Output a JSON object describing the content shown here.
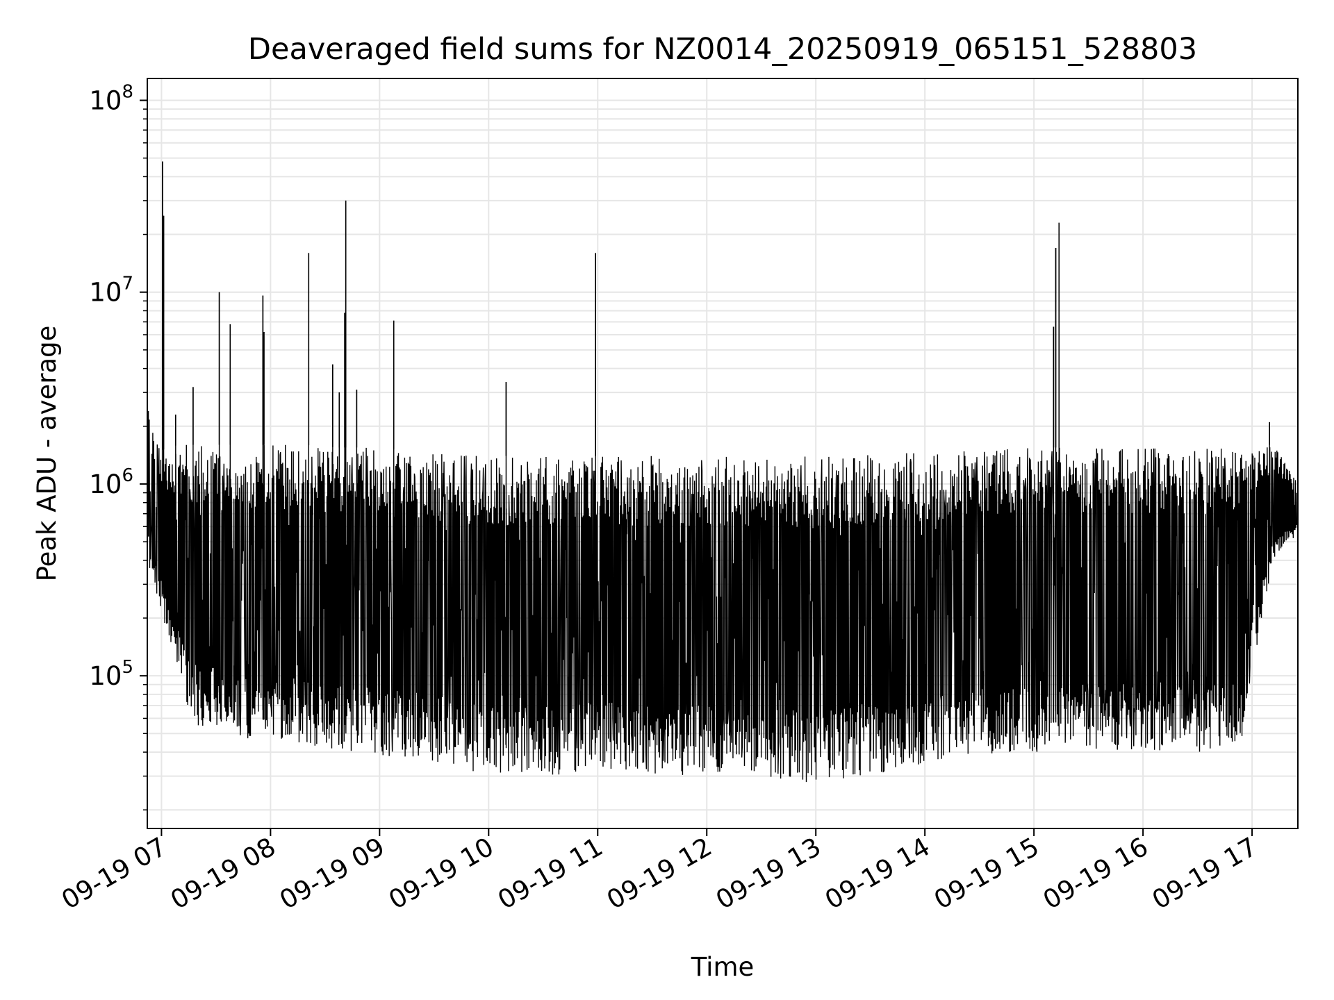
{
  "chart_data": {
    "type": "line",
    "title": "Deaveraged field sums for NZ0014_20250919_065151_528803",
    "xlabel": "Time",
    "ylabel": "Peak ADU - average",
    "yscale": "log",
    "ylim": [
      16000,
      130000000
    ],
    "xlim_hours": [
      6.87,
      17.42
    ],
    "grid": true,
    "line_color": "#000000",
    "grid_color": "#e6e6e6",
    "x_ticks": [
      {
        "hour": 7,
        "label": "09-19 07"
      },
      {
        "hour": 8,
        "label": "09-19 08"
      },
      {
        "hour": 9,
        "label": "09-19 09"
      },
      {
        "hour": 10,
        "label": "09-19 10"
      },
      {
        "hour": 11,
        "label": "09-19 11"
      },
      {
        "hour": 12,
        "label": "09-19 12"
      },
      {
        "hour": 13,
        "label": "09-19 13"
      },
      {
        "hour": 14,
        "label": "09-19 14"
      },
      {
        "hour": 15,
        "label": "09-19 15"
      },
      {
        "hour": 16,
        "label": "09-19 16"
      },
      {
        "hour": 17,
        "label": "09-19 17"
      }
    ],
    "y_ticks": [
      {
        "value": 100000,
        "base": "10",
        "exp": "5"
      },
      {
        "value": 1000000,
        "base": "10",
        "exp": "6"
      },
      {
        "value": 10000000,
        "base": "10",
        "exp": "7"
      },
      {
        "value": 100000000,
        "base": "10",
        "exp": "8"
      }
    ],
    "envelope": [
      {
        "t": 6.88,
        "hi": 2400000,
        "lo": 380000
      },
      {
        "t": 7.0,
        "hi": 1500000,
        "lo": 200000
      },
      {
        "t": 7.15,
        "hi": 1600000,
        "lo": 95000
      },
      {
        "t": 7.3,
        "hi": 1600000,
        "lo": 55000
      },
      {
        "t": 7.6,
        "hi": 1600000,
        "lo": 50000
      },
      {
        "t": 7.9,
        "hi": 1600000,
        "lo": 42000
      },
      {
        "t": 8.3,
        "hi": 1600000,
        "lo": 45000
      },
      {
        "t": 8.6,
        "hi": 1550000,
        "lo": 40000
      },
      {
        "t": 9.0,
        "hi": 1550000,
        "lo": 38000
      },
      {
        "t": 9.5,
        "hi": 1450000,
        "lo": 36000
      },
      {
        "t": 10.0,
        "hi": 1400000,
        "lo": 30000
      },
      {
        "t": 10.5,
        "hi": 1400000,
        "lo": 30000
      },
      {
        "t": 11.0,
        "hi": 1400000,
        "lo": 32000
      },
      {
        "t": 11.5,
        "hi": 1400000,
        "lo": 30000
      },
      {
        "t": 12.0,
        "hi": 1400000,
        "lo": 30000
      },
      {
        "t": 12.5,
        "hi": 1400000,
        "lo": 30000
      },
      {
        "t": 13.0,
        "hi": 1400000,
        "lo": 27000
      },
      {
        "t": 13.5,
        "hi": 1450000,
        "lo": 30000
      },
      {
        "t": 14.0,
        "hi": 1450000,
        "lo": 35000
      },
      {
        "t": 14.5,
        "hi": 1500000,
        "lo": 38000
      },
      {
        "t": 15.0,
        "hi": 1550000,
        "lo": 40000
      },
      {
        "t": 15.5,
        "hi": 1550000,
        "lo": 42000
      },
      {
        "t": 16.0,
        "hi": 1550000,
        "lo": 40000
      },
      {
        "t": 16.5,
        "hi": 1550000,
        "lo": 38000
      },
      {
        "t": 16.9,
        "hi": 1550000,
        "lo": 45000
      },
      {
        "t": 17.05,
        "hi": 1600000,
        "lo": 150000
      },
      {
        "t": 17.2,
        "hi": 1600000,
        "lo": 400000
      },
      {
        "t": 17.42,
        "hi": 1000000,
        "lo": 550000
      }
    ],
    "spikes": [
      {
        "t": 6.88,
        "value": 2400000
      },
      {
        "t": 7.01,
        "value": 48000000
      },
      {
        "t": 7.02,
        "value": 25000000
      },
      {
        "t": 7.13,
        "value": 2300000
      },
      {
        "t": 7.29,
        "value": 3200000
      },
      {
        "t": 7.53,
        "value": 10000000
      },
      {
        "t": 7.63,
        "value": 6800000
      },
      {
        "t": 7.93,
        "value": 9600000
      },
      {
        "t": 7.94,
        "value": 6200000
      },
      {
        "t": 8.35,
        "value": 16000000
      },
      {
        "t": 8.57,
        "value": 4200000
      },
      {
        "t": 8.63,
        "value": 3000000
      },
      {
        "t": 8.68,
        "value": 7800000
      },
      {
        "t": 8.69,
        "value": 30000000
      },
      {
        "t": 8.79,
        "value": 3100000
      },
      {
        "t": 9.13,
        "value": 7100000
      },
      {
        "t": 10.16,
        "value": 3400000
      },
      {
        "t": 10.98,
        "value": 16000000
      },
      {
        "t": 15.18,
        "value": 6600000
      },
      {
        "t": 15.2,
        "value": 17000000
      },
      {
        "t": 15.23,
        "value": 23000000
      },
      {
        "t": 17.16,
        "value": 2100000
      }
    ]
  }
}
